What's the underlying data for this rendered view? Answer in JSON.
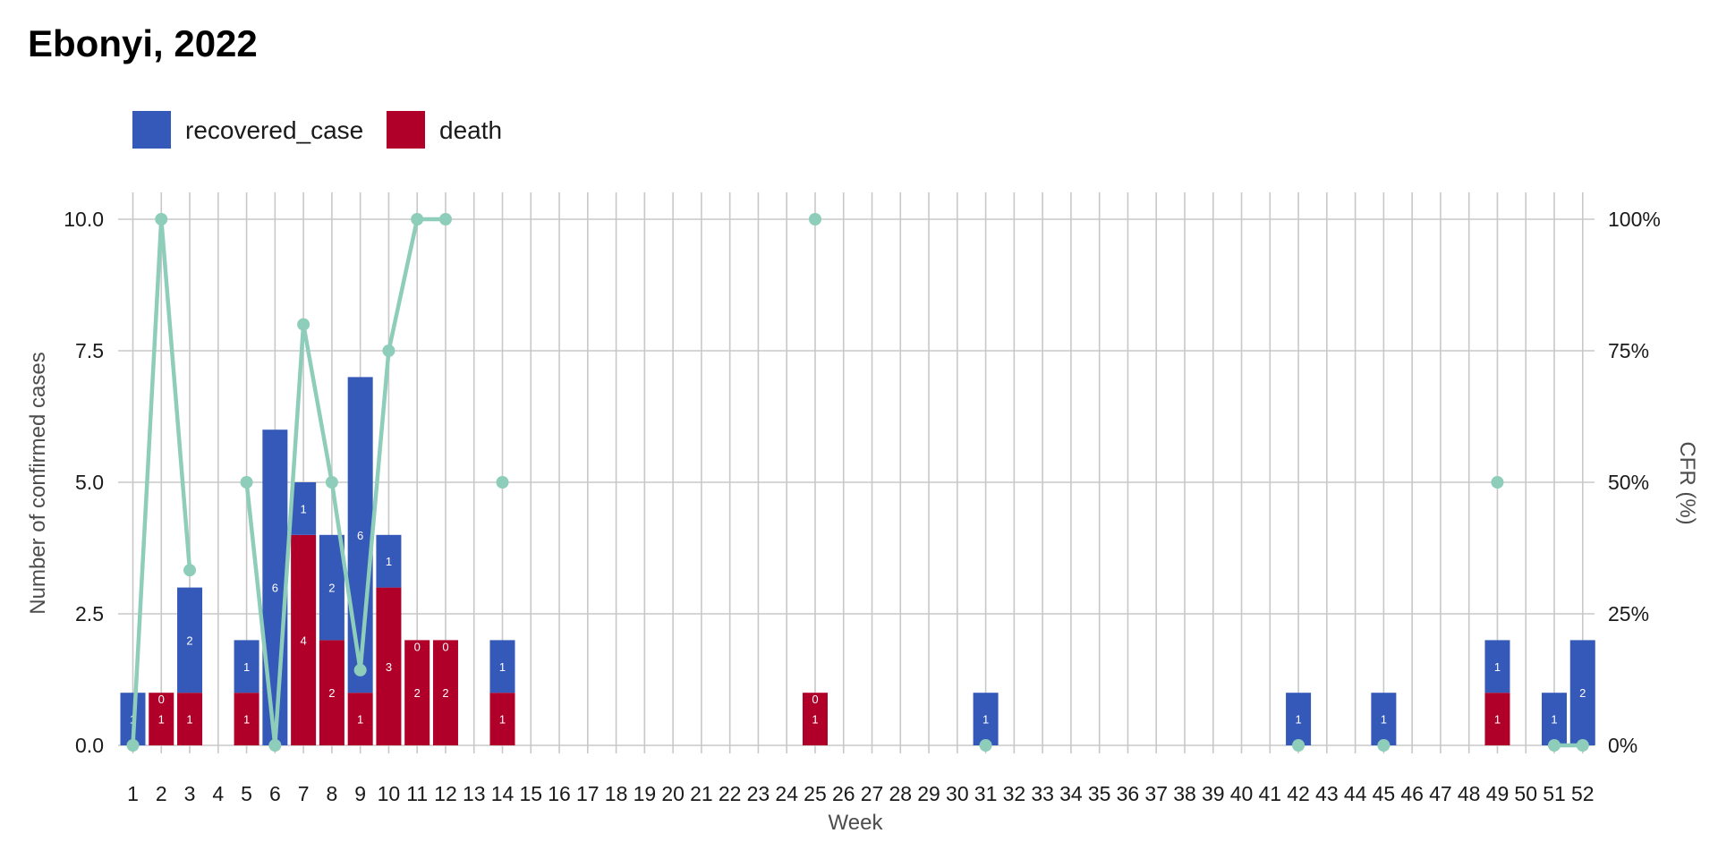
{
  "chart_data": {
    "type": "bar",
    "title": "Ebonyi, 2022",
    "xlabel": "Week",
    "ylabel": "Number of confirmed cases",
    "y2label": "CFR (%)",
    "ylim": [
      0,
      10.9
    ],
    "yticks": [
      "0.0",
      "2.5",
      "5.0",
      "7.5",
      "10.0"
    ],
    "y2ticks": [
      "0%",
      "25%",
      "50%",
      "75%",
      "100%"
    ],
    "grid": true,
    "legend_position": "top-left",
    "weeks": [
      1,
      2,
      3,
      4,
      5,
      6,
      7,
      8,
      9,
      10,
      11,
      12,
      13,
      14,
      15,
      16,
      17,
      18,
      19,
      20,
      21,
      22,
      23,
      24,
      25,
      26,
      27,
      28,
      29,
      30,
      31,
      32,
      33,
      34,
      35,
      36,
      37,
      38,
      39,
      40,
      41,
      42,
      43,
      44,
      45,
      46,
      47,
      48,
      49,
      50,
      51,
      52
    ],
    "series": [
      {
        "name": "recovered_case",
        "color": "#3559b8",
        "points": [
          {
            "week": 1,
            "value": 1
          },
          {
            "week": 3,
            "value": 2
          },
          {
            "week": 5,
            "value": 1
          },
          {
            "week": 6,
            "value": 6
          },
          {
            "week": 7,
            "value": 1
          },
          {
            "week": 8,
            "value": 2
          },
          {
            "week": 9,
            "value": 6
          },
          {
            "week": 10,
            "value": 1
          },
          {
            "week": 14,
            "value": 1
          },
          {
            "week": 31,
            "value": 1
          },
          {
            "week": 42,
            "value": 1
          },
          {
            "week": 45,
            "value": 1
          },
          {
            "week": 49,
            "value": 1
          },
          {
            "week": 51,
            "value": 1
          },
          {
            "week": 52,
            "value": 2
          }
        ],
        "zero_labels": [
          2,
          11,
          12,
          25
        ]
      },
      {
        "name": "death",
        "color": "#b0002a",
        "points": [
          {
            "week": 2,
            "value": 1
          },
          {
            "week": 3,
            "value": 1
          },
          {
            "week": 5,
            "value": 1
          },
          {
            "week": 7,
            "value": 4
          },
          {
            "week": 8,
            "value": 2
          },
          {
            "week": 9,
            "value": 1
          },
          {
            "week": 10,
            "value": 3
          },
          {
            "week": 11,
            "value": 2
          },
          {
            "week": 12,
            "value": 2
          },
          {
            "week": 14,
            "value": 1
          },
          {
            "week": 25,
            "value": 1
          },
          {
            "week": 49,
            "value": 1
          }
        ]
      }
    ],
    "cfr": {
      "color": "#8ecdb9",
      "unit": "percent",
      "points": [
        {
          "week": 1,
          "value": 0
        },
        {
          "week": 2,
          "value": 100
        },
        {
          "week": 3,
          "value": 33.3
        },
        {
          "week": 5,
          "value": 50
        },
        {
          "week": 6,
          "value": 0
        },
        {
          "week": 7,
          "value": 80
        },
        {
          "week": 8,
          "value": 50
        },
        {
          "week": 9,
          "value": 14.3
        },
        {
          "week": 10,
          "value": 75
        },
        {
          "week": 11,
          "value": 100
        },
        {
          "week": 12,
          "value": 100
        },
        {
          "week": 14,
          "value": 50
        },
        {
          "week": 25,
          "value": 100
        },
        {
          "week": 31,
          "value": 0
        },
        {
          "week": 42,
          "value": 0
        },
        {
          "week": 45,
          "value": 0
        },
        {
          "week": 49,
          "value": 50
        },
        {
          "week": 51,
          "value": 0
        },
        {
          "week": 52,
          "value": 0
        }
      ]
    }
  }
}
